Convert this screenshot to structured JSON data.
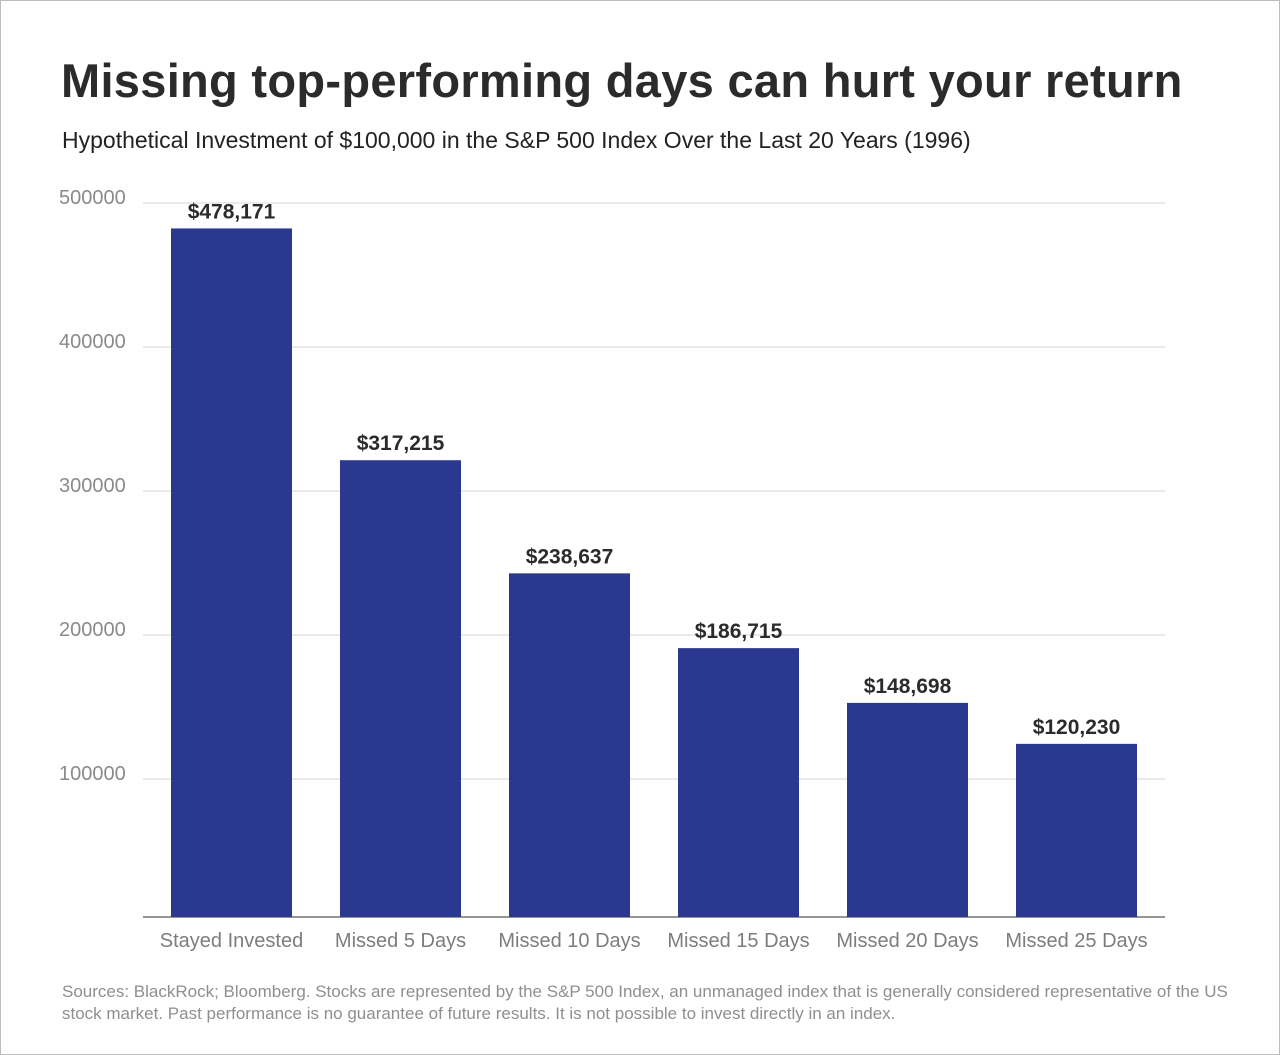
{
  "chart_data": {
    "type": "bar",
    "title": "Missing top-performing days can hurt your return",
    "subtitle": "Hypothetical Investment of $100,000 in the S&P 500 Index Over the Last 20 Years (1996)",
    "categories": [
      "Stayed Invested",
      "Missed 5 Days",
      "Missed 10 Days",
      "Missed 15 Days",
      "Missed 20 Days",
      "Missed 25 Days"
    ],
    "values": [
      478171,
      317215,
      238637,
      186715,
      148698,
      120230
    ],
    "value_labels": [
      "$478,171",
      "$317,215",
      "$238,637",
      "$186,715",
      "$148,698",
      "$120,230"
    ],
    "yticks": [
      100000,
      200000,
      300000,
      400000,
      500000
    ],
    "ylim": [
      0,
      500000
    ],
    "xlabel": "",
    "ylabel": "",
    "grid": true,
    "legend": "none",
    "bar_color": "#2b388f",
    "source": "Sources: BlackRock; Bloomberg. Stocks are represented by the S&P 500 Index, an unmanaged index that is generally considered representative of the US stock market. Past performance is no guarantee of future results. It is not possible to invest directly in an index."
  }
}
